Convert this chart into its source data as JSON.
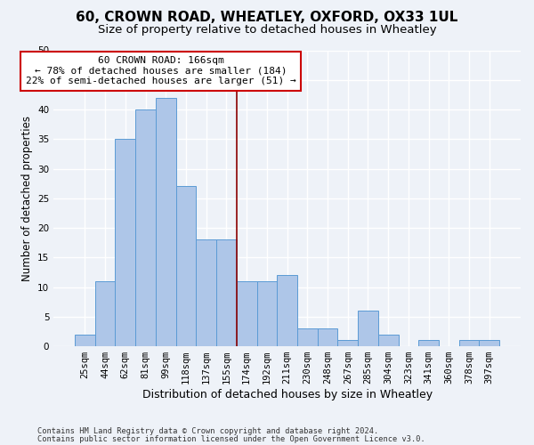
{
  "title1": "60, CROWN ROAD, WHEATLEY, OXFORD, OX33 1UL",
  "title2": "Size of property relative to detached houses in Wheatley",
  "xlabel": "Distribution of detached houses by size in Wheatley",
  "ylabel": "Number of detached properties",
  "bin_labels": [
    "25sqm",
    "44sqm",
    "62sqm",
    "81sqm",
    "99sqm",
    "118sqm",
    "137sqm",
    "155sqm",
    "174sqm",
    "192sqm",
    "211sqm",
    "230sqm",
    "248sqm",
    "267sqm",
    "285sqm",
    "304sqm",
    "323sqm",
    "341sqm",
    "360sqm",
    "378sqm",
    "397sqm"
  ],
  "bar_values": [
    2,
    11,
    35,
    40,
    42,
    27,
    18,
    18,
    11,
    11,
    12,
    3,
    3,
    1,
    6,
    2,
    0,
    1,
    0,
    1,
    1
  ],
  "bar_color": "#aec6e8",
  "bar_edge_color": "#5b9bd5",
  "vline_x": 7.5,
  "vline_color": "#8b0000",
  "annotation_line1": "60 CROWN ROAD: 166sqm",
  "annotation_line2": "← 78% of detached houses are smaller (184)",
  "annotation_line3": "22% of semi-detached houses are larger (51) →",
  "annotation_box_color": "#ffffff",
  "annotation_edge_color": "#cc0000",
  "ylim": [
    0,
    50
  ],
  "yticks": [
    0,
    5,
    10,
    15,
    20,
    25,
    30,
    35,
    40,
    45,
    50
  ],
  "footnote1": "Contains HM Land Registry data © Crown copyright and database right 2024.",
  "footnote2": "Contains public sector information licensed under the Open Government Licence v3.0.",
  "bg_color": "#eef2f8",
  "plot_bg_color": "#eef2f8",
  "grid_color": "#ffffff",
  "title1_fontsize": 11,
  "title2_fontsize": 9.5,
  "xlabel_fontsize": 9,
  "ylabel_fontsize": 8.5,
  "tick_fontsize": 7.5,
  "annotation_fontsize": 8
}
